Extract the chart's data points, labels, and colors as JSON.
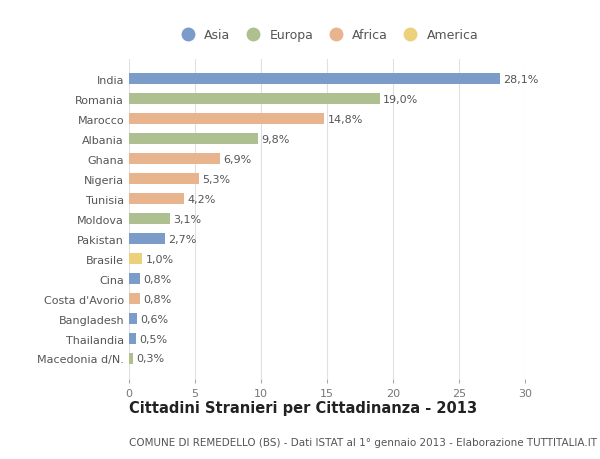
{
  "countries": [
    "India",
    "Romania",
    "Marocco",
    "Albania",
    "Ghana",
    "Nigeria",
    "Tunisia",
    "Moldova",
    "Pakistan",
    "Brasile",
    "Cina",
    "Costa d'Avorio",
    "Bangladesh",
    "Thailandia",
    "Macedonia d/N."
  ],
  "values": [
    28.1,
    19.0,
    14.8,
    9.8,
    6.9,
    5.3,
    4.2,
    3.1,
    2.7,
    1.0,
    0.8,
    0.8,
    0.6,
    0.5,
    0.3
  ],
  "labels": [
    "28,1%",
    "19,0%",
    "14,8%",
    "9,8%",
    "6,9%",
    "5,3%",
    "4,2%",
    "3,1%",
    "2,7%",
    "1,0%",
    "0,8%",
    "0,8%",
    "0,6%",
    "0,5%",
    "0,3%"
  ],
  "continents": [
    "Asia",
    "Europa",
    "Africa",
    "Europa",
    "Africa",
    "Africa",
    "Africa",
    "Europa",
    "Asia",
    "America",
    "Asia",
    "Africa",
    "Asia",
    "Asia",
    "Europa"
  ],
  "colors": {
    "Asia": "#7b9cc9",
    "Europa": "#afc090",
    "Africa": "#e8b48e",
    "America": "#ecd07a"
  },
  "legend_order": [
    "Asia",
    "Europa",
    "Africa",
    "America"
  ],
  "title": "Cittadini Stranieri per Cittadinanza - 2013",
  "subtitle": "COMUNE DI REMEDELLO (BS) - Dati ISTAT al 1° gennaio 2013 - Elaborazione TUTTITALIA.IT",
  "xlim": [
    0,
    30
  ],
  "xticks": [
    0,
    5,
    10,
    15,
    20,
    25,
    30
  ],
  "background_color": "#ffffff",
  "grid_color": "#e0e0e0",
  "bar_height": 0.55,
  "title_fontsize": 10.5,
  "subtitle_fontsize": 7.5,
  "tick_fontsize": 8,
  "label_fontsize": 8,
  "legend_fontsize": 9
}
